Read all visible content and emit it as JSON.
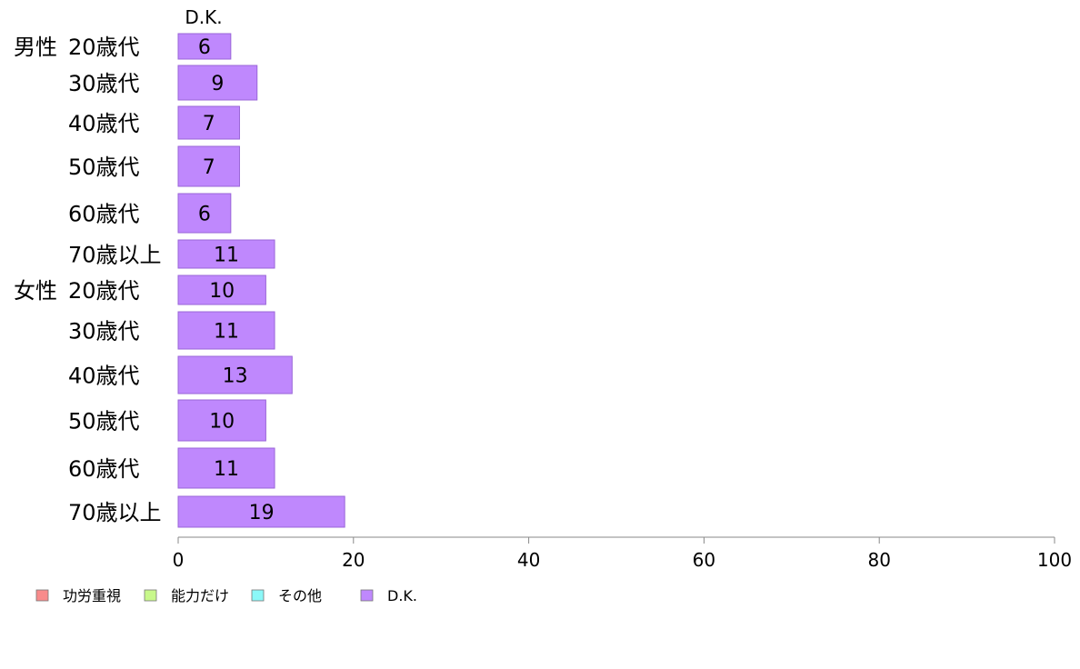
{
  "chart_data": {
    "type": "bar",
    "orientation": "horizontal",
    "stacked": true,
    "series_header": "D.K.",
    "group_labels": [
      "男性",
      "女性"
    ],
    "categories": [
      "20歳代",
      "30歳代",
      "40歳代",
      "50歳代",
      "60歳代",
      "70歳以上",
      "20歳代",
      "30歳代",
      "40歳代",
      "50歳代",
      "60歳代",
      "70歳以上"
    ],
    "category_group": [
      0,
      0,
      0,
      0,
      0,
      0,
      1,
      1,
      1,
      1,
      1,
      1
    ],
    "series": [
      {
        "name": "D.K.",
        "color": "#bf88fd",
        "stroke": "#9a66d8",
        "values": [
          6,
          9,
          7,
          7,
          6,
          11,
          10,
          11,
          13,
          10,
          11,
          19
        ]
      }
    ],
    "xlim": [
      0,
      100
    ],
    "xticks": [
      "0",
      "20",
      "40",
      "60",
      "80",
      "100"
    ],
    "grid": false,
    "legend": {
      "position": "bottom-left",
      "items": [
        {
          "label": "功労重視",
          "color": "#f88b8b"
        },
        {
          "label": "能力だけ",
          "color": "#c8f88b"
        },
        {
          "label": "その他",
          "color": "#8bf8f8"
        },
        {
          "label": "D.K.",
          "color": "#bf88fd"
        }
      ]
    }
  }
}
